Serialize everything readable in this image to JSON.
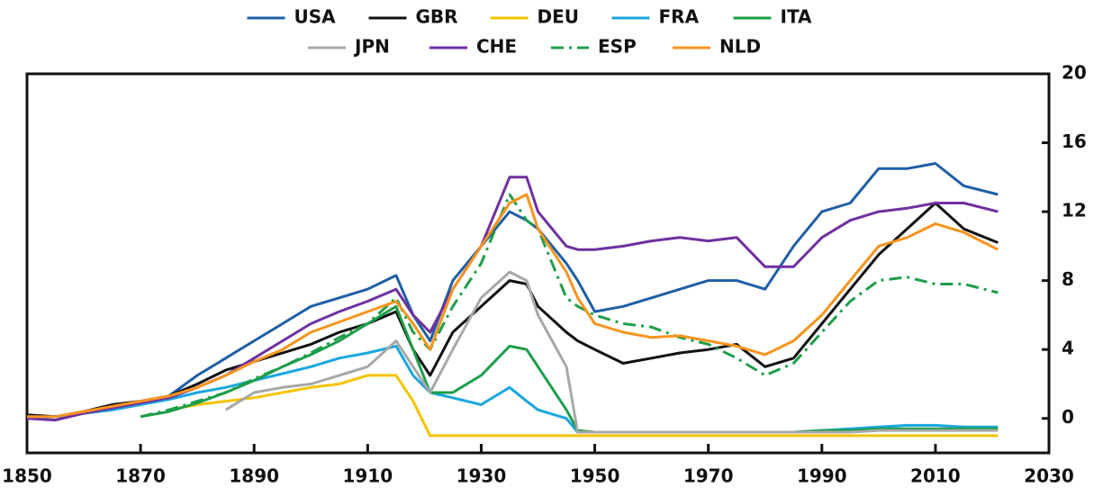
{
  "chart_data": {
    "type": "line",
    "x": [
      1850,
      1855,
      1860,
      1865,
      1870,
      1875,
      1880,
      1885,
      1890,
      1895,
      1900,
      1905,
      1910,
      1915,
      1918,
      1921,
      1925,
      1930,
      1935,
      1938,
      1940,
      1945,
      1947,
      1950,
      1955,
      1960,
      1965,
      1970,
      1975,
      1980,
      1985,
      1990,
      1995,
      2000,
      2005,
      2010,
      2015,
      2021
    ],
    "series": [
      {
        "name": "USA",
        "color": "#1f5fa6",
        "dash": "solid",
        "values": [
          0.2,
          0.1,
          0.3,
          0.5,
          0.8,
          1.3,
          2.5,
          3.5,
          4.5,
          5.5,
          6.5,
          7,
          7.5,
          8.3,
          6,
          4.5,
          8,
          10,
          12,
          11.5,
          11,
          9,
          8,
          6.2,
          6.5,
          7,
          7.5,
          8,
          8,
          7.5,
          10,
          12,
          12.5,
          14.5,
          14.5,
          14.8,
          13.5,
          13
        ]
      },
      {
        "name": "GBR",
        "color": "#111111",
        "dash": "solid",
        "values": [
          0.2,
          0.1,
          0.4,
          0.8,
          1,
          1.3,
          2,
          2.8,
          3.3,
          3.8,
          4.3,
          5,
          5.5,
          6.2,
          4,
          2.5,
          5,
          6.5,
          8,
          7.8,
          6.5,
          5,
          4.5,
          4,
          3.2,
          3.5,
          3.8,
          4,
          4.3,
          3,
          3.5,
          5.5,
          7.5,
          9.5,
          11,
          12.5,
          11,
          10.2
        ]
      },
      {
        "name": "DEU",
        "color": "#f5c400",
        "dash": "solid",
        "values": [
          null,
          null,
          null,
          null,
          null,
          0.5,
          0.8,
          1,
          1.2,
          1.5,
          1.8,
          2,
          2.5,
          2.5,
          1,
          -1,
          -1,
          -1,
          -1,
          -1,
          -1,
          -1,
          -1,
          -1,
          -1,
          -1,
          -1,
          -1,
          -1,
          -1,
          -1,
          -1,
          -1,
          -1,
          -1,
          -1,
          -1,
          -1
        ]
      },
      {
        "name": "FRA",
        "color": "#19a7e0",
        "dash": "solid",
        "values": [
          0,
          0.1,
          0.3,
          0.5,
          0.8,
          1.1,
          1.5,
          1.8,
          2.2,
          2.6,
          3,
          3.5,
          3.8,
          4.2,
          2.5,
          1.5,
          1.2,
          0.8,
          1.8,
          1,
          0.5,
          0,
          -0.8,
          -0.8,
          -0.8,
          -0.8,
          -0.8,
          -0.8,
          -0.8,
          -0.8,
          -0.8,
          -0.7,
          -0.6,
          -0.5,
          -0.4,
          -0.4,
          -0.5,
          -0.5
        ]
      },
      {
        "name": "ITA",
        "color": "#1e9e4a",
        "dash": "solid",
        "values": [
          null,
          null,
          null,
          null,
          0.1,
          0.4,
          0.9,
          1.5,
          2.2,
          3,
          3.7,
          4.5,
          5.5,
          6.5,
          4,
          1.5,
          1.5,
          2.5,
          4.2,
          4,
          3,
          0.5,
          -0.7,
          -0.8,
          -0.8,
          -0.8,
          -0.8,
          -0.8,
          -0.8,
          -0.8,
          -0.8,
          -0.7,
          -0.7,
          -0.6,
          -0.6,
          -0.6,
          -0.6,
          -0.6
        ]
      },
      {
        "name": "JPN",
        "color": "#a8a8a8",
        "dash": "solid",
        "values": [
          null,
          null,
          null,
          null,
          null,
          null,
          null,
          0.5,
          1.5,
          1.8,
          2,
          2.5,
          3,
          4.5,
          3,
          1.5,
          4,
          7,
          8.5,
          8,
          6,
          3,
          -0.8,
          -0.8,
          -0.8,
          -0.8,
          -0.8,
          -0.8,
          -0.8,
          -0.8,
          -0.8,
          -0.8,
          -0.8,
          -0.7,
          -0.7,
          -0.7,
          -0.7,
          -0.7
        ]
      },
      {
        "name": "CHE",
        "color": "#7030a0",
        "dash": "solid",
        "values": [
          0,
          -0.1,
          0.3,
          0.6,
          0.9,
          1.2,
          1.8,
          2.5,
          3.5,
          4.5,
          5.5,
          6.2,
          6.8,
          7.5,
          6,
          5,
          7.5,
          10,
          14,
          14,
          12,
          10,
          9.8,
          9.8,
          10,
          10.3,
          10.5,
          10.3,
          10.5,
          8.8,
          8.8,
          10.5,
          11.5,
          12,
          12.2,
          12.5,
          12.5,
          12
        ]
      },
      {
        "name": "ESP",
        "color": "#1e9e4a",
        "dash": "dashdot",
        "values": [
          null,
          null,
          null,
          null,
          0.1,
          0.5,
          1,
          1.5,
          2.3,
          3,
          3.8,
          4.7,
          5.5,
          7,
          5,
          4,
          6.5,
          9,
          13,
          11.5,
          11,
          7,
          6.5,
          6,
          5.5,
          5.3,
          4.7,
          4.3,
          3.5,
          2.5,
          3.2,
          5,
          6.8,
          8,
          8.2,
          7.8,
          7.8,
          7.3
        ]
      },
      {
        "name": "NLD",
        "color": "#f7941d",
        "dash": "solid",
        "values": [
          0.1,
          0.1,
          0.4,
          0.7,
          1,
          1.3,
          1.8,
          2.5,
          3.3,
          4,
          5,
          5.6,
          6.2,
          6.8,
          5.5,
          4,
          7.5,
          10,
          12.5,
          13,
          11,
          8.5,
          7,
          5.5,
          5,
          4.7,
          4.8,
          4.5,
          4.2,
          3.7,
          4.5,
          6,
          8,
          10,
          10.5,
          11.3,
          10.8,
          9.8
        ]
      }
    ],
    "xlim": [
      1850,
      2030
    ],
    "xticks": [
      1850,
      1870,
      1890,
      1910,
      1930,
      1950,
      1970,
      1990,
      2010,
      2030
    ],
    "ylim": [
      -2,
      20
    ],
    "yticks": [
      0,
      4,
      8,
      12,
      16,
      20
    ],
    "y_axis_side": "right"
  }
}
